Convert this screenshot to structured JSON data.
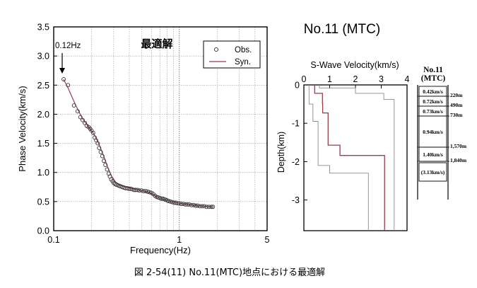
{
  "figure_caption": "図 2-54(11)  No.11(MTC)地点における最適解",
  "station_title": "No.11 (MTC)",
  "colors": {
    "syn": "#9b3a4a",
    "obs_marker": "#333333",
    "grid": "#9a9a9a",
    "bound": "#8a8a8a"
  },
  "chart_data": [
    {
      "id": "dispersion",
      "type": "scatter",
      "title": "最適解",
      "xlabel": "Frequency(Hz)",
      "ylabel": "Phase Velocity(km/s)",
      "xscale": "log",
      "xlim": [
        0.1,
        5
      ],
      "ylim": [
        0,
        3.5
      ],
      "xticks": [
        0.1,
        1,
        5
      ],
      "xtick_labels": [
        "0.1",
        "1",
        "5"
      ],
      "yticks": [
        0,
        0.5,
        1.0,
        1.5,
        2.0,
        2.5,
        3.0,
        3.5
      ],
      "ytick_labels": [
        "0.0",
        "0.5",
        "1.0",
        "1.5",
        "2.0",
        "2.5",
        "3.0",
        "3.5"
      ],
      "grid": true,
      "legend_position": "top-right",
      "annotation": "0.12Hz",
      "series": [
        {
          "name": "Obs.",
          "marker": "open-circle",
          "x": [
            0.12,
            0.13,
            0.145,
            0.155,
            0.163,
            0.17,
            0.177,
            0.183,
            0.19,
            0.195,
            0.2,
            0.206,
            0.212,
            0.218,
            0.224,
            0.23,
            0.237,
            0.244,
            0.251,
            0.258,
            0.266,
            0.274,
            0.28,
            0.287,
            0.294,
            0.301,
            0.308,
            0.316,
            0.324,
            0.333,
            0.342,
            0.352,
            0.362,
            0.373,
            0.385,
            0.397,
            0.41,
            0.423,
            0.437,
            0.45,
            0.464,
            0.48,
            0.5,
            0.52,
            0.54,
            0.56,
            0.58,
            0.6,
            0.62,
            0.64,
            0.66,
            0.68,
            0.7,
            0.72,
            0.74,
            0.76,
            0.78,
            0.8,
            0.82,
            0.85,
            0.88,
            0.91,
            0.94,
            0.97,
            1.0,
            1.04,
            1.08,
            1.12,
            1.16,
            1.2,
            1.25,
            1.3,
            1.35,
            1.4,
            1.46,
            1.52,
            1.58,
            1.65,
            1.72,
            1.8,
            1.85
          ],
          "y": [
            2.6,
            2.5,
            2.15,
            2.05,
            1.95,
            1.9,
            1.85,
            1.8,
            1.78,
            1.75,
            1.72,
            1.68,
            1.6,
            1.55,
            1.5,
            1.42,
            1.35,
            1.28,
            1.2,
            1.13,
            1.05,
            0.98,
            0.93,
            0.88,
            0.85,
            0.82,
            0.8,
            0.79,
            0.78,
            0.77,
            0.76,
            0.75,
            0.74,
            0.73,
            0.73,
            0.72,
            0.72,
            0.71,
            0.7,
            0.7,
            0.7,
            0.69,
            0.69,
            0.68,
            0.68,
            0.67,
            0.66,
            0.65,
            0.63,
            0.6,
            0.58,
            0.57,
            0.56,
            0.55,
            0.55,
            0.54,
            0.53,
            0.52,
            0.51,
            0.5,
            0.49,
            0.48,
            0.48,
            0.47,
            0.47,
            0.46,
            0.46,
            0.45,
            0.45,
            0.45,
            0.44,
            0.44,
            0.43,
            0.43,
            0.42,
            0.42,
            0.42,
            0.41,
            0.41,
            0.41,
            0.41
          ]
        },
        {
          "name": "Syn.",
          "marker": "line",
          "x": [
            0.12,
            0.13,
            0.15,
            0.17,
            0.19,
            0.21,
            0.23,
            0.25,
            0.27,
            0.29,
            0.31,
            0.33,
            0.36,
            0.4,
            0.45,
            0.5,
            0.55,
            0.6,
            0.65,
            0.7,
            0.8,
            0.9,
            1.0,
            1.2,
            1.4,
            1.6,
            1.85
          ],
          "y": [
            2.6,
            2.45,
            2.15,
            1.92,
            1.78,
            1.65,
            1.48,
            1.28,
            1.08,
            0.93,
            0.84,
            0.79,
            0.76,
            0.73,
            0.71,
            0.69,
            0.67,
            0.64,
            0.59,
            0.56,
            0.52,
            0.49,
            0.47,
            0.45,
            0.43,
            0.42,
            0.41
          ]
        }
      ]
    },
    {
      "id": "vs-profile",
      "type": "line",
      "title": "S-Wave Velocity(km/s)",
      "ylabel": "Depth(km)",
      "xlim": [
        0,
        4
      ],
      "ylim": [
        -3.8,
        0
      ],
      "xticks": [
        0,
        1,
        2,
        3,
        4
      ],
      "xtick_labels": [
        "0",
        "1",
        "2",
        "3",
        "4"
      ],
      "yticks": [
        0,
        -1,
        -2,
        -3
      ],
      "ytick_labels": [
        "0",
        "-1",
        "-2",
        "-3"
      ],
      "grid": false,
      "series": [
        {
          "role": "best",
          "x": [
            0.42,
            0.42,
            0.72,
            0.72,
            0.73,
            0.73,
            0.94,
            0.94,
            1.4,
            1.4,
            3.13,
            3.13
          ],
          "y": [
            0,
            -0.22,
            -0.22,
            -0.49,
            -0.49,
            -0.73,
            -0.73,
            -1.57,
            -1.57,
            -1.84,
            -1.84,
            -3.8
          ]
        },
        {
          "role": "lower-bound",
          "x": [
            0.2,
            0.2,
            0.35,
            0.35,
            0.55,
            0.55,
            1.0,
            1.0,
            2.5,
            2.5
          ],
          "y": [
            0,
            -0.5,
            -0.5,
            -0.95,
            -0.95,
            -2.1,
            -2.1,
            -2.3,
            -2.3,
            -3.8
          ]
        },
        {
          "role": "upper-bound",
          "x": [
            0.6,
            0.6,
            2.0,
            2.0,
            3.1,
            3.1,
            3.5,
            3.5
          ],
          "y": [
            0,
            -0.08,
            -0.08,
            -0.22,
            -0.22,
            -0.38,
            -0.38,
            -3.8
          ]
        }
      ]
    }
  ],
  "layer_table": {
    "title_line1": "No.11",
    "title_line2": "(MTC)",
    "layers": [
      {
        "velocity": "0.42km/s",
        "bottom": "220m"
      },
      {
        "velocity": "0.72km/s",
        "bottom": "490m"
      },
      {
        "velocity": "0.73km/s",
        "bottom": "730m"
      },
      {
        "velocity": "0.94km/s",
        "bottom": "1,570m"
      },
      {
        "velocity": "1.40km/s",
        "bottom": "1,840m"
      },
      {
        "velocity": "(3.13km/s)",
        "bottom": ""
      }
    ]
  }
}
